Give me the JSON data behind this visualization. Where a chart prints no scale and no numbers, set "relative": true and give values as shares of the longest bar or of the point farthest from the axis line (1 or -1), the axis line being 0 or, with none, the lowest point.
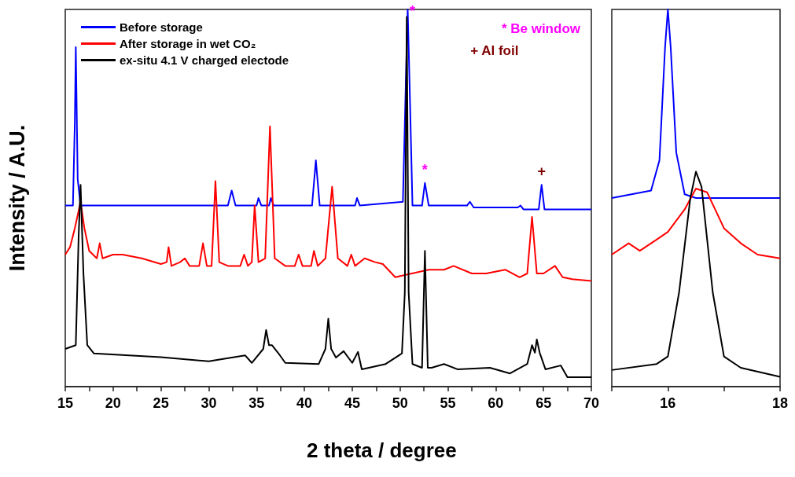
{
  "chart_data": [
    {
      "type": "line",
      "relative": true,
      "xlabel": "2 theta / degree",
      "ylabel": "Intensity / A.U.",
      "legend": "top left",
      "grid": false,
      "marker": "none",
      "line_style": "solid",
      "tick_labels": "x",
      "xlim": [
        15,
        70
      ],
      "xticks": [
        15,
        {
          "value": 17.5,
          "label": null
        },
        20,
        {
          "value": 22.5,
          "label": null
        },
        25,
        {
          "value": 27.5,
          "label": null
        },
        30,
        {
          "value": 32.5,
          "label": null
        },
        35,
        {
          "value": 37.5,
          "label": null
        },
        40,
        {
          "value": 42.5,
          "label": null
        },
        45,
        {
          "value": 47.5,
          "label": null
        },
        50,
        {
          "value": 52.5,
          "label": null
        },
        55,
        {
          "value": 57.5,
          "label": null
        },
        60,
        {
          "value": 62.5,
          "label": null
        },
        65,
        {
          "value": 67.5,
          "label": null
        },
        70
      ],
      "annotations": [
        "* Be window",
        "+ Al foil",
        {
          "text": "*",
          "x": 51.3,
          "y": 0.96
        },
        {
          "text": "*",
          "x": 52.6,
          "y": 0.54
        },
        {
          "text": "+",
          "x": 64.8,
          "y": 0.535
        }
      ],
      "series": [
        {
          "name": "Before storage",
          "color": "#0000ff",
          "x": [
            15,
            15.8,
            16.0,
            16.1,
            16.3,
            16.6,
            20,
            25,
            30,
            32.0,
            32.4,
            32.8,
            35.0,
            35.2,
            35.5,
            36.3,
            36.5,
            36.8,
            40.8,
            41.2,
            41.6,
            45.3,
            45.5,
            45.8,
            50.3,
            50.6,
            50.8,
            51.0,
            51.3,
            52.3,
            52.6,
            53.0,
            57.0,
            57.3,
            57.7,
            62.3,
            62.6,
            62.9,
            64.5,
            64.8,
            65.1,
            67.5,
            70
          ],
          "values": [
            0.48,
            0.48,
            0.7,
            0.9,
            0.55,
            0.48,
            0.48,
            0.48,
            0.48,
            0.48,
            0.52,
            0.48,
            0.48,
            0.5,
            0.48,
            0.48,
            0.5,
            0.48,
            0.48,
            0.6,
            0.48,
            0.48,
            0.5,
            0.48,
            0.49,
            0.8,
            1,
            0.8,
            0.48,
            0.48,
            0.54,
            0.48,
            0.48,
            0.49,
            0.475,
            0.475,
            0.48,
            0.47,
            0.47,
            0.535,
            0.47,
            0.47,
            0.47
          ]
        },
        {
          "name": "After storage in wet CO₂",
          "color": "#ff0000",
          "x": [
            15,
            15.5,
            16.0,
            16.6,
            17.0,
            17.5,
            18.3,
            18.6,
            18.9,
            20,
            21,
            23,
            25,
            25.6,
            25.8,
            26.1,
            27,
            27.5,
            28,
            29.0,
            29.4,
            29.8,
            30.3,
            30.7,
            31.1,
            32,
            33.3,
            33.7,
            34.1,
            34.5,
            34.8,
            35.2,
            35.9,
            36.4,
            36.9,
            38,
            39.0,
            39.4,
            39.8,
            40.7,
            41,
            41.4,
            42.2,
            42.9,
            43.5,
            44.5,
            44.9,
            45.3,
            46.3,
            47.4,
            48.2,
            49.5,
            53,
            54.6,
            55.6,
            57.5,
            59,
            61,
            62.5,
            63.3,
            63.8,
            64.3,
            65,
            66.2,
            67,
            68,
            70
          ],
          "values": [
            0.35,
            0.37,
            0.42,
            0.49,
            0.42,
            0.36,
            0.34,
            0.38,
            0.34,
            0.35,
            0.35,
            0.34,
            0.325,
            0.33,
            0.37,
            0.32,
            0.33,
            0.34,
            0.32,
            0.32,
            0.38,
            0.32,
            0.32,
            0.545,
            0.33,
            0.32,
            0.32,
            0.35,
            0.32,
            0.33,
            0.48,
            0.33,
            0.34,
            0.69,
            0.34,
            0.32,
            0.32,
            0.35,
            0.32,
            0.32,
            0.36,
            0.32,
            0.34,
            0.53,
            0.34,
            0.32,
            0.35,
            0.32,
            0.34,
            0.33,
            0.325,
            0.29,
            0.31,
            0.31,
            0.32,
            0.3,
            0.3,
            0.31,
            0.29,
            0.3,
            0.45,
            0.3,
            0.3,
            0.32,
            0.29,
            0.285,
            0.28
          ]
        },
        {
          "name": "ex-situ 4.1 V charged electode",
          "color": "#000000",
          "x": [
            15,
            16.1,
            16.4,
            16.6,
            16.9,
            17.3,
            18,
            25,
            30,
            33.8,
            34.5,
            35.7,
            36.0,
            36.3,
            36.6,
            37.3,
            38,
            41.5,
            42.2,
            42.5,
            42.8,
            43.3,
            44.1,
            45,
            45.6,
            46,
            48.5,
            50.2,
            50.5,
            50.7,
            50.9,
            51.3,
            52.3,
            52.6,
            52.9,
            53.3,
            54.6,
            56,
            59.4,
            61.5,
            63.3,
            63.8,
            64.1,
            64.3,
            64.6,
            65.2,
            66.8,
            67.5,
            70
          ],
          "values": [
            0.1,
            0.11,
            0.4,
            0.535,
            0.3,
            0.11,
            0.088,
            0.078,
            0.067,
            0.083,
            0.063,
            0.1,
            0.15,
            0.11,
            0.11,
            0.088,
            0.063,
            0.06,
            0.1,
            0.18,
            0.1,
            0.077,
            0.094,
            0.063,
            0.092,
            0.046,
            0.06,
            0.088,
            0.25,
            0.98,
            0.25,
            0.06,
            0.05,
            0.36,
            0.05,
            0.05,
            0.06,
            0.046,
            0.05,
            0.035,
            0.06,
            0.11,
            0.09,
            0.125,
            0.09,
            0.046,
            0.056,
            0.025,
            0.025
          ]
        }
      ]
    },
    {
      "type": "line",
      "relative": true,
      "grid": false,
      "marker": "none",
      "line_style": "solid",
      "tick_labels": "x",
      "xlim": [
        15,
        18
      ],
      "xticks": [
        {
          "value": 15,
          "label": null
        },
        16,
        {
          "value": 17,
          "label": null
        },
        18
      ],
      "series": [
        {
          "color": "#0000ff",
          "x": [
            15,
            15.7,
            15.85,
            15.95,
            16.0,
            16.05,
            16.15,
            16.3,
            16.5,
            18
          ],
          "values": [
            0.5,
            0.52,
            0.6,
            0.9,
            1,
            0.9,
            0.62,
            0.51,
            0.5,
            0.5
          ]
        },
        {
          "color": "#ff0000",
          "x": [
            15,
            15.3,
            15.5,
            15.8,
            16,
            16.3,
            16.5,
            16.7,
            17,
            17.3,
            17.6,
            18
          ],
          "values": [
            0.35,
            0.38,
            0.36,
            0.39,
            0.41,
            0.47,
            0.525,
            0.515,
            0.42,
            0.38,
            0.35,
            0.34
          ]
        },
        {
          "color": "#000000",
          "x": [
            15,
            15.8,
            16.0,
            16.2,
            16.4,
            16.5,
            16.6,
            16.8,
            17.0,
            17.3,
            18
          ],
          "values": [
            0.044,
            0.06,
            0.08,
            0.25,
            0.5,
            0.57,
            0.53,
            0.25,
            0.08,
            0.05,
            0.026
          ]
        }
      ]
    }
  ]
}
